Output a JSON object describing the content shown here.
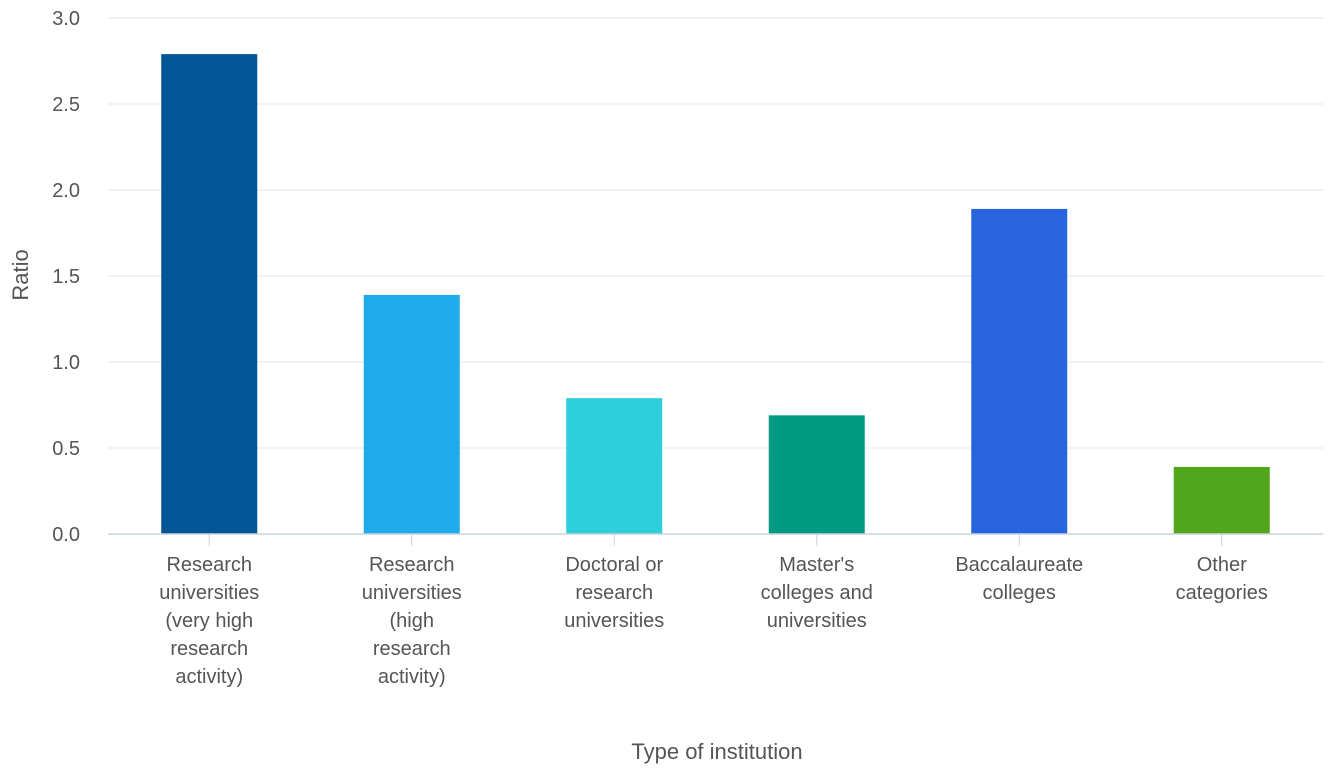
{
  "chart_data": {
    "type": "bar",
    "title": "",
    "xlabel": "Type of institution",
    "ylabel": "Ratio",
    "ylim": [
      0,
      3.0
    ],
    "yticks": [
      "0.0",
      "0.5",
      "1.0",
      "1.5",
      "2.0",
      "2.5",
      "3.0"
    ],
    "grid": true,
    "categories": [
      [
        "Research",
        "universities",
        "(very high",
        "research",
        "activity)"
      ],
      [
        "Research",
        "universities",
        "(high",
        "research",
        "activity)"
      ],
      [
        "Doctoral or",
        "research",
        "universities"
      ],
      [
        "Master's",
        "colleges and",
        "universities"
      ],
      [
        "Baccalaureate",
        "colleges"
      ],
      [
        "Other",
        "categories"
      ]
    ],
    "values": [
      2.79,
      1.39,
      0.79,
      0.69,
      1.89,
      0.39
    ],
    "colors": [
      "#035596",
      "#1fabeb",
      "#2dd0da",
      "#009982",
      "#2864de",
      "#52a61c"
    ]
  }
}
